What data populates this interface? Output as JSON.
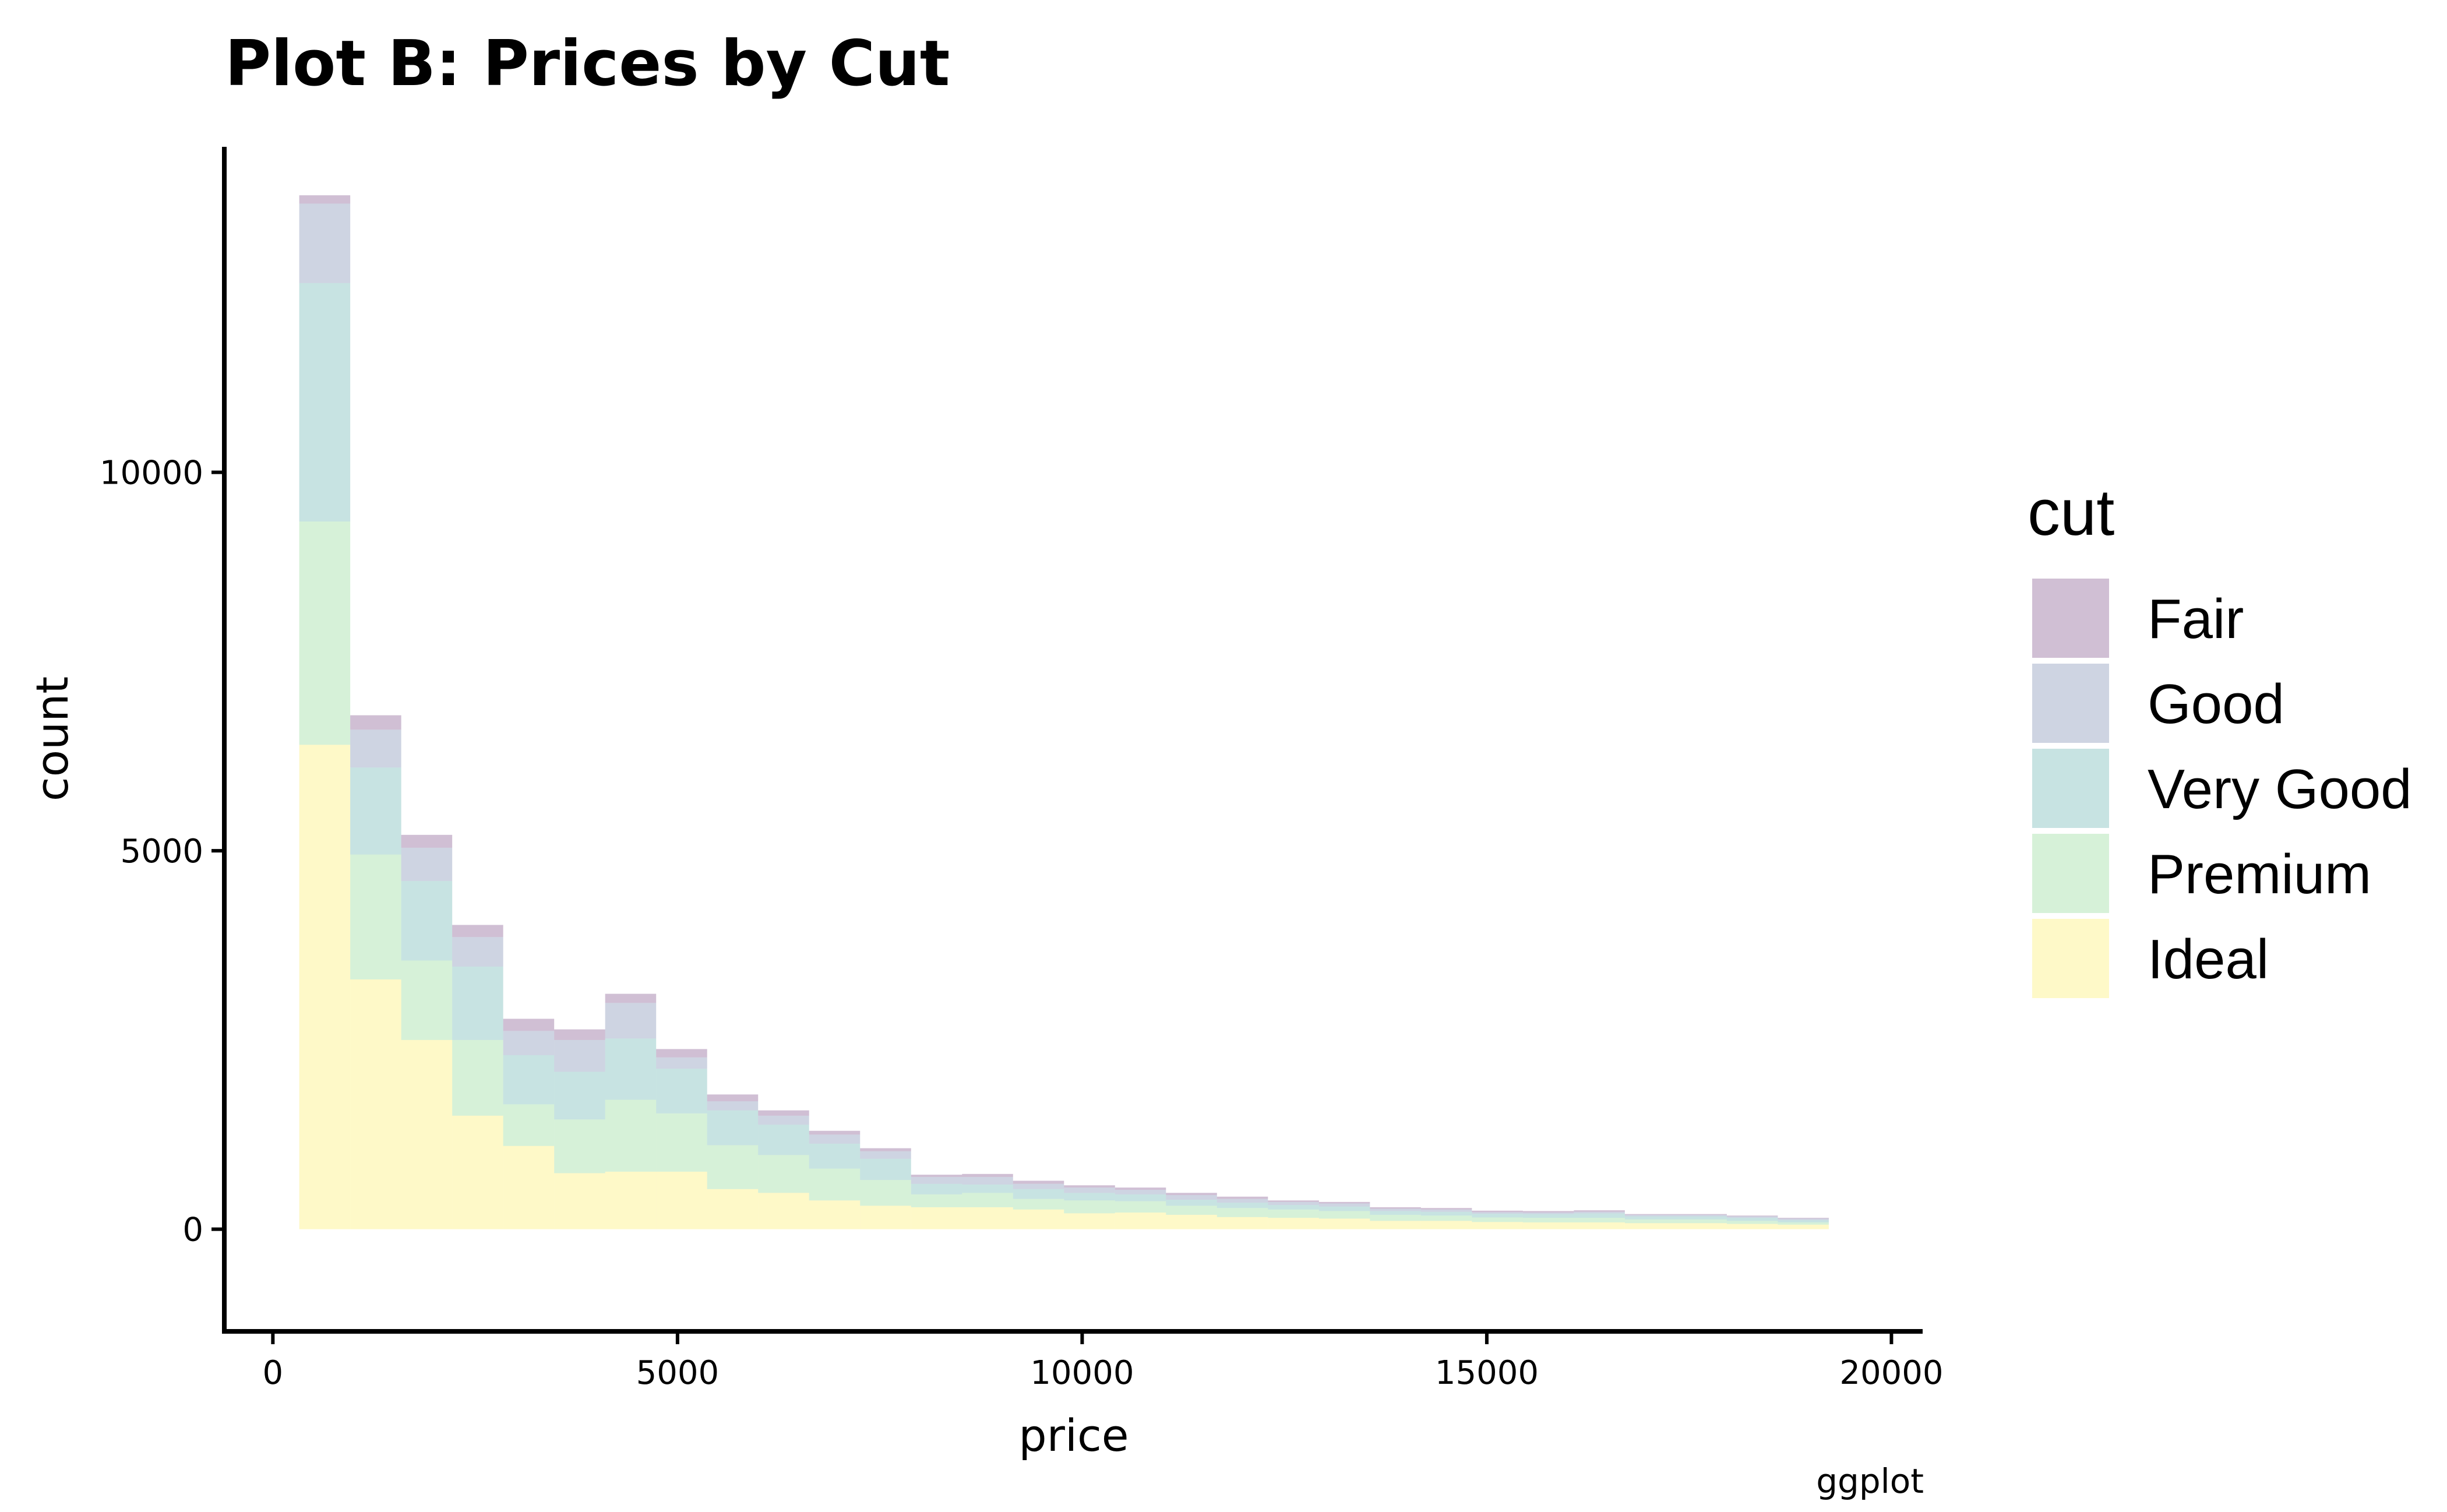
{
  "chart_data": {
    "type": "bar",
    "stacked": true,
    "title": "Plot B: Prices by Cut",
    "xlabel": "price",
    "ylabel": "count",
    "caption": "ggplot",
    "xlim": [
      -600,
      20400
    ],
    "ylim": [
      -1350,
      14300
    ],
    "x_ticks": [
      0,
      5000,
      10000,
      15000,
      20000
    ],
    "x_tick_labels": [
      "0",
      "5000",
      "10000",
      "15000",
      "20000"
    ],
    "y_ticks": [
      0,
      5000,
      10000
    ],
    "y_tick_labels": [
      "0",
      "5000",
      "10000"
    ],
    "grid": false,
    "legend": {
      "title": "cut",
      "position": "right"
    },
    "bin_edges": [
      326,
      956,
      1586,
      2216,
      2846,
      3476,
      4106,
      4736,
      5366,
      5996,
      6626,
      7256,
      7886,
      8516,
      9146,
      9776,
      10406,
      11036,
      11666,
      12296,
      12926,
      13556,
      14186,
      14816,
      15446,
      16076,
      16706,
      17336,
      17966,
      18596,
      19226
    ],
    "series": [
      {
        "name": "Ideal",
        "color": "#FDE725",
        "values": [
          6400,
          3300,
          2500,
          1500,
          1100,
          740,
          760,
          760,
          530,
          480,
          380,
          310,
          290,
          290,
          260,
          210,
          220,
          190,
          160,
          150,
          140,
          110,
          110,
          95,
          90,
          90,
          80,
          80,
          70,
          60,
          0
        ]
      },
      {
        "name": "Premium",
        "color": "#5DC863",
        "values": [
          2950,
          1650,
          1050,
          1000,
          550,
          710,
          950,
          770,
          580,
          500,
          420,
          340,
          170,
          190,
          140,
          170,
          150,
          120,
          120,
          110,
          100,
          80,
          70,
          60,
          60,
          60,
          50,
          50,
          40,
          30,
          0
        ]
      },
      {
        "name": "Very Good",
        "color": "#21908C",
        "values": [
          3150,
          1150,
          1050,
          970,
          650,
          630,
          810,
          590,
          460,
          400,
          330,
          280,
          140,
          110,
          130,
          100,
          90,
          80,
          70,
          60,
          60,
          50,
          50,
          50,
          50,
          60,
          40,
          40,
          40,
          30,
          0
        ]
      },
      {
        "name": "Good",
        "color": "#3B528B",
        "values": [
          1050,
          500,
          440,
          390,
          320,
          420,
          470,
          150,
          120,
          120,
          120,
          100,
          90,
          100,
          70,
          70,
          60,
          60,
          50,
          40,
          40,
          30,
          30,
          20,
          20,
          20,
          20,
          20,
          20,
          20,
          0
        ]
      },
      {
        "name": "Fair",
        "color": "#440154",
        "values": [
          110,
          190,
          170,
          160,
          160,
          140,
          120,
          110,
          90,
          70,
          50,
          40,
          30,
          40,
          40,
          30,
          30,
          30,
          30,
          20,
          20,
          20,
          20,
          20,
          20,
          20,
          10,
          10,
          10,
          10,
          0
        ]
      }
    ],
    "fill_opacity": 0.25
  }
}
